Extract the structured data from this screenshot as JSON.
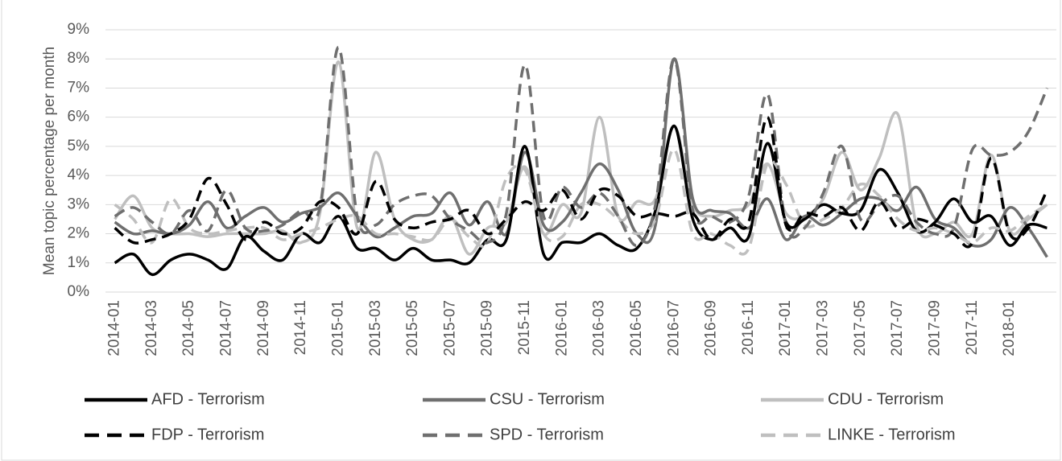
{
  "chart_data": {
    "type": "line",
    "y_label": "Mean topic percentage per month",
    "categories": [
      "2014-01",
      null,
      "2014-03",
      null,
      "2014-05",
      null,
      "2014-07",
      null,
      "2014-09",
      null,
      "2014-11",
      null,
      "2015-01",
      null,
      "2015-03",
      null,
      "2015-05",
      null,
      "2015-07",
      null,
      "2015-09",
      null,
      "2015-11",
      null,
      "2016-01",
      null,
      "2016-03",
      null,
      "2016-05",
      null,
      "2016-07",
      null,
      "2016-09",
      null,
      "2016-11",
      null,
      "2017-01",
      null,
      "2017-03",
      null,
      "2017-05",
      null,
      "2017-07",
      null,
      "2017-09",
      null,
      "2017-11",
      null,
      "2018-01",
      null,
      null
    ],
    "ylim": [
      0,
      9
    ],
    "yticks": [
      {
        "value": 0,
        "label": "0%"
      },
      {
        "value": 1,
        "label": "1%"
      },
      {
        "value": 2,
        "label": "2%"
      },
      {
        "value": 3,
        "label": "3%"
      },
      {
        "value": 4,
        "label": "4%"
      },
      {
        "value": 5,
        "label": "5%"
      },
      {
        "value": 6,
        "label": "6%"
      },
      {
        "value": 7,
        "label": "7%"
      },
      {
        "value": 8,
        "label": "8%"
      },
      {
        "value": 9,
        "label": "9%"
      }
    ],
    "grid": true,
    "legend": "bottom",
    "series": [
      {
        "name": "AFD - Terrorism",
        "color": "#000000",
        "dashed": false,
        "values": [
          1.0,
          1.3,
          0.6,
          1.1,
          1.3,
          1.1,
          0.8,
          1.9,
          1.4,
          1.1,
          2.0,
          1.7,
          2.6,
          1.5,
          1.5,
          1.1,
          1.5,
          1.1,
          1.1,
          1.0,
          1.8,
          1.8,
          5.0,
          1.3,
          1.7,
          1.7,
          2.0,
          1.6,
          1.5,
          2.8,
          5.7,
          2.5,
          1.8,
          2.2,
          1.9,
          5.1,
          2.4,
          2.5,
          3.0,
          2.7,
          2.8,
          4.2,
          3.4,
          2.1,
          2.4,
          3.2,
          2.4,
          2.6,
          1.6,
          2.3,
          2.2
        ]
      },
      {
        "name": "CSU - Terrorism",
        "color": "#6f6f6f",
        "dashed": false,
        "values": [
          2.4,
          2.0,
          2.1,
          2.0,
          2.3,
          3.1,
          2.2,
          2.6,
          2.9,
          2.4,
          2.7,
          2.9,
          3.4,
          2.6,
          1.9,
          2.2,
          2.6,
          2.7,
          3.4,
          2.3,
          3.1,
          2.0,
          4.8,
          2.3,
          2.4,
          3.4,
          4.4,
          3.5,
          2.0,
          2.3,
          8.0,
          3.2,
          2.8,
          2.7,
          2.2,
          3.2,
          1.8,
          2.6,
          2.3,
          2.7,
          3.2,
          3.2,
          2.8,
          3.6,
          2.5,
          2.2,
          1.6,
          1.8,
          2.9,
          2.2,
          1.2
        ]
      },
      {
        "name": "CDU - Terrorism",
        "color": "#bfbfbf",
        "dashed": false,
        "values": [
          2.5,
          3.3,
          2.2,
          2.0,
          2.0,
          1.9,
          2.0,
          2.0,
          2.0,
          2.1,
          1.7,
          2.7,
          7.9,
          2.2,
          4.8,
          2.5,
          1.8,
          1.8,
          2.6,
          1.3,
          2.2,
          2.4,
          4.3,
          2.0,
          3.0,
          2.7,
          6.0,
          2.6,
          3.1,
          3.2,
          5.7,
          3.0,
          2.6,
          2.8,
          3.0,
          4.4,
          2.7,
          2.6,
          3.2,
          4.8,
          3.5,
          4.6,
          6.1,
          2.3,
          2.0,
          2.4,
          2.0,
          4.7,
          2.1,
          2.5,
          3.0
        ]
      },
      {
        "name": "FDP - Terrorism",
        "color": "#000000",
        "dashed": true,
        "values": [
          2.2,
          1.7,
          1.8,
          2.0,
          2.5,
          3.9,
          3.0,
          1.8,
          2.4,
          2.0,
          2.2,
          3.1,
          2.9,
          2.0,
          3.8,
          2.5,
          2.2,
          2.4,
          2.5,
          2.8,
          2.0,
          2.5,
          3.1,
          2.8,
          3.5,
          2.5,
          3.5,
          3.3,
          2.6,
          2.7,
          2.6,
          2.7,
          1.8,
          2.5,
          2.4,
          6.0,
          2.3,
          2.7,
          2.6,
          2.9,
          2.1,
          3.1,
          2.2,
          2.5,
          2.3,
          2.0,
          1.7,
          4.6,
          2.0,
          2.2,
          3.5
        ]
      },
      {
        "name": "SPD - Terrorism",
        "color": "#6f6f6f",
        "dashed": true,
        "values": [
          2.6,
          2.9,
          2.4,
          2.0,
          2.8,
          2.1,
          3.5,
          2.2,
          2.1,
          2.3,
          2.8,
          2.9,
          8.4,
          2.6,
          2.3,
          3.0,
          3.3,
          3.3,
          2.5,
          2.1,
          1.7,
          2.7,
          7.8,
          2.6,
          3.6,
          2.9,
          3.4,
          2.6,
          1.6,
          3.0,
          8.0,
          2.8,
          2.6,
          2.4,
          3.3,
          6.8,
          2.3,
          2.2,
          3.4,
          5.0,
          2.5,
          3.0,
          3.3,
          2.4,
          2.0,
          2.2,
          4.9,
          4.7,
          4.8,
          5.5,
          7.0
        ]
      },
      {
        "name": "LINKE - Terrorism",
        "color": "#bfbfbf",
        "dashed": true,
        "values": [
          3.0,
          2.5,
          1.7,
          3.2,
          2.2,
          2.0,
          2.1,
          2.2,
          2.2,
          1.8,
          2.0,
          2.2,
          2.5,
          2.6,
          2.0,
          2.0,
          1.9,
          1.8,
          2.5,
          1.9,
          1.7,
          3.9,
          4.2,
          2.0,
          1.9,
          3.0,
          3.0,
          2.5,
          2.0,
          2.5,
          4.9,
          2.0,
          2.0,
          1.6,
          1.5,
          4.4,
          3.7,
          2.3,
          2.5,
          2.9,
          3.7,
          3.3,
          2.5,
          2.1,
          2.2,
          2.0,
          1.7,
          2.2,
          2.1,
          2.6,
          3.0
        ]
      }
    ]
  }
}
